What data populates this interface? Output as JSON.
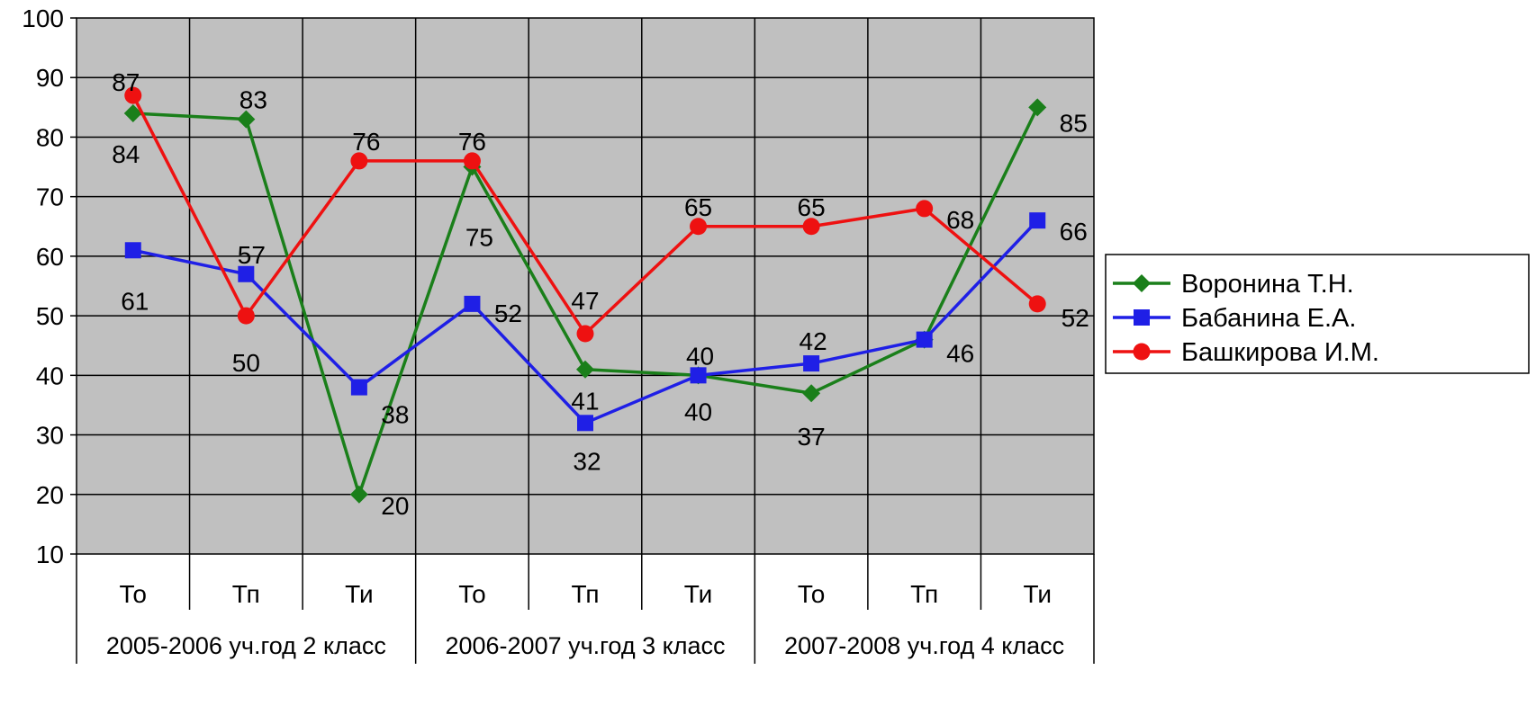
{
  "chart_data": {
    "type": "line",
    "categories": [
      "То",
      "Тп",
      "Ти",
      "То",
      "Тп",
      "Ти",
      "То",
      "Тп",
      "Ти"
    ],
    "groups": [
      "2005-2006 уч.год 2 класс",
      "2006-2007 уч.год 3 класс",
      "2007-2008 уч.год 4 класс"
    ],
    "ylim": [
      10,
      100
    ],
    "yticks": [
      10,
      20,
      30,
      40,
      50,
      60,
      70,
      80,
      90,
      100
    ],
    "grid": true,
    "plot_background": "#c0c0c0",
    "legend_position": "right",
    "series": [
      {
        "name": "Воронина Т.Н.",
        "color": "#1a7f1a",
        "marker": "diamond",
        "values": [
          84,
          83,
          20,
          75,
          41,
          40,
          37,
          46,
          85
        ],
        "labels": [
          "84",
          "83",
          "20",
          "75",
          "41",
          "40",
          "37",
          "",
          "85"
        ]
      },
      {
        "name": "Бабанина Е.А.",
        "color": "#1f1fe6",
        "marker": "square",
        "values": [
          61,
          57,
          38,
          52,
          32,
          40,
          42,
          46,
          66
        ],
        "labels": [
          "61",
          "57",
          "38",
          "52",
          "32",
          "40",
          "42",
          "46",
          "66"
        ]
      },
      {
        "name": "Башкирова И.М.",
        "color": "#ee1111",
        "marker": "circle",
        "values": [
          87,
          50,
          76,
          76,
          47,
          65,
          65,
          68,
          52
        ],
        "labels": [
          "87",
          "50",
          "76",
          "76",
          "47",
          "65",
          "65",
          "68",
          "52"
        ]
      }
    ]
  }
}
